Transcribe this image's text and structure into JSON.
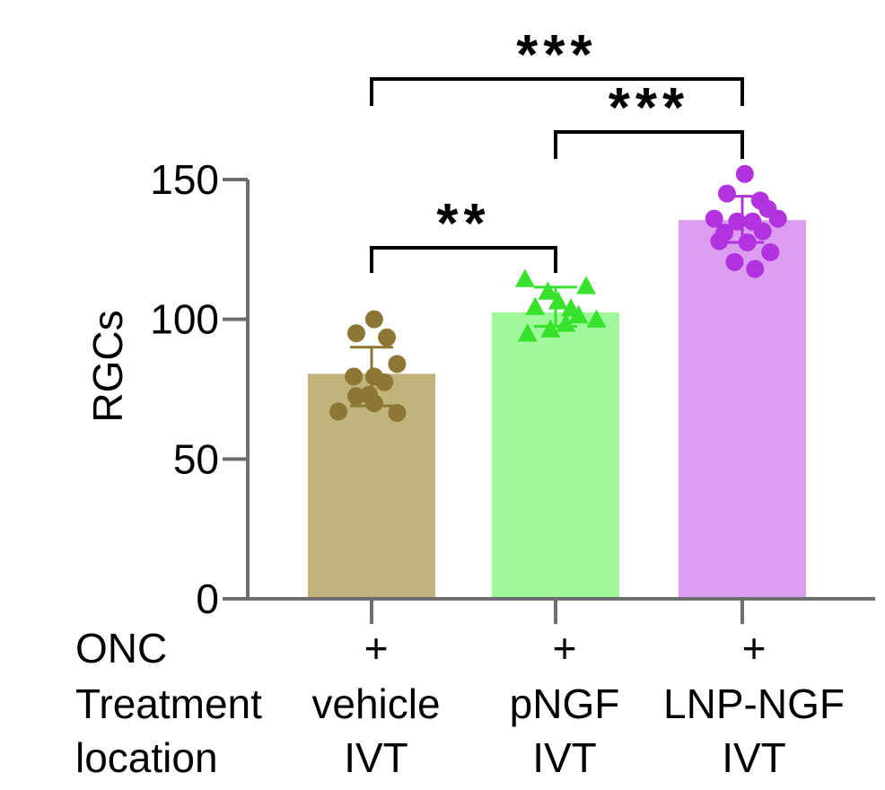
{
  "chart_data": {
    "type": "bar",
    "ylabel": "RGCs",
    "ylim": [
      0,
      150
    ],
    "yticks": [
      0,
      50,
      100,
      150
    ],
    "categories": [
      "vehicle",
      "pNGF",
      "LNP-NGF"
    ],
    "values": [
      80.5,
      102.5,
      135.5
    ],
    "error": [
      {
        "low": 69,
        "high": 90
      },
      {
        "low": 97.5,
        "high": 111.5
      },
      {
        "low": 127.5,
        "high": 144
      }
    ],
    "bar_colors": [
      "#c0b47c",
      "#a0f89c",
      "#dc9cf0"
    ],
    "point_colors": [
      "#8c7834",
      "#38e22c",
      "#b232e0"
    ],
    "markers": [
      "circle",
      "triangle",
      "circle"
    ],
    "points": [
      [
        [
          0.02,
          100
        ],
        [
          -0.12,
          95
        ],
        [
          0.12,
          93.5
        ],
        [
          0.2,
          84
        ],
        [
          -0.14,
          79.5
        ],
        [
          0.02,
          79.5
        ],
        [
          -0.12,
          72.5
        ],
        [
          0.1,
          77.5
        ],
        [
          -0.02,
          73
        ],
        [
          0.02,
          70
        ],
        [
          -0.26,
          67
        ],
        [
          0.2,
          66.5
        ]
      ],
      [
        [
          -0.24,
          114
        ],
        [
          0.24,
          111.5
        ],
        [
          -0.06,
          109.5
        ],
        [
          0.02,
          106
        ],
        [
          -0.16,
          104
        ],
        [
          0.12,
          103.5
        ],
        [
          0.32,
          99.5
        ],
        [
          -0.04,
          96
        ],
        [
          -0.22,
          94.5
        ],
        [
          0.08,
          98
        ],
        [
          0.18,
          101
        ]
      ],
      [
        [
          0.02,
          152
        ],
        [
          -0.12,
          145
        ],
        [
          0.14,
          142.5
        ],
        [
          0.2,
          139.5
        ],
        [
          0.28,
          136
        ],
        [
          -0.22,
          136
        ],
        [
          0.08,
          135
        ],
        [
          -0.04,
          135
        ],
        [
          0.16,
          131.5
        ],
        [
          -0.14,
          131
        ],
        [
          0.04,
          127.5
        ],
        [
          0.22,
          124
        ],
        [
          -0.06,
          120.5
        ],
        [
          0.1,
          118
        ],
        [
          -0.18,
          128
        ]
      ]
    ],
    "significance": [
      {
        "from": 0,
        "to": 2,
        "label": "***"
      },
      {
        "from": 1,
        "to": 2,
        "label": "***"
      },
      {
        "from": 0,
        "to": 1,
        "label": "**"
      }
    ],
    "row_labels": [
      "ONC",
      "Treatment",
      "location"
    ],
    "onc_values": [
      "+",
      "+",
      "+"
    ],
    "treatments": [
      "vehicle",
      "pNGF",
      "LNP-NGF"
    ],
    "locations": [
      "IVT",
      "IVT",
      "IVT"
    ]
  }
}
